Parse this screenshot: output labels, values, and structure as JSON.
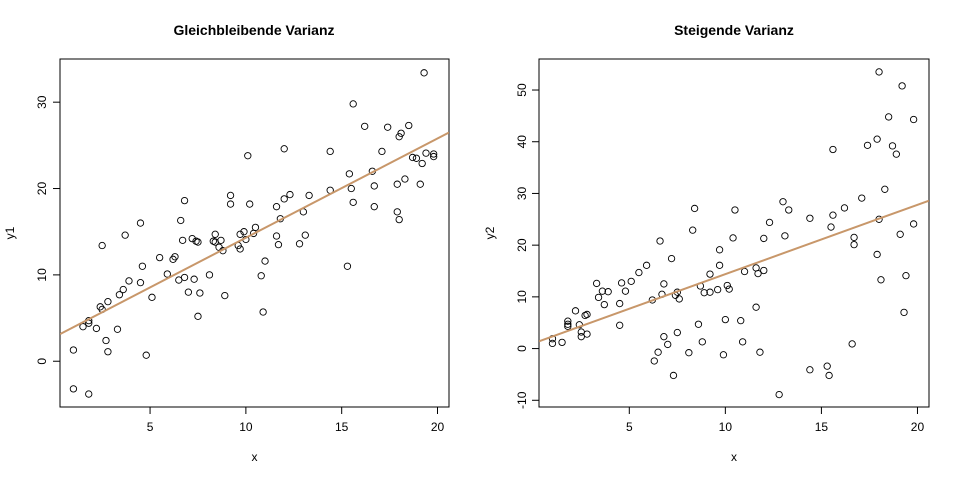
{
  "chart_data": [
    {
      "type": "scatter",
      "title": "Gleichbleibende Varianz",
      "xlabel": "x",
      "ylabel": "y1",
      "xlim": [
        0.3,
        20.6
      ],
      "ylim": [
        -5.3,
        35.0
      ],
      "xticks": [
        5,
        10,
        15,
        20
      ],
      "yticks": [
        0,
        10,
        20,
        30
      ],
      "regression_line": {
        "intercept": 2.8,
        "slope": 1.15,
        "color": "#C8976A"
      },
      "points": [
        [
          1,
          1.3
        ],
        [
          1,
          -3.2
        ],
        [
          1.5,
          4
        ],
        [
          1.8,
          4.7
        ],
        [
          1.8,
          4.4
        ],
        [
          1.8,
          -3.8
        ],
        [
          2.2,
          3.8
        ],
        [
          2.4,
          6.3
        ],
        [
          2.5,
          13.4
        ],
        [
          2.5,
          6
        ],
        [
          2.7,
          2.4
        ],
        [
          2.8,
          6.9
        ],
        [
          2.8,
          1.1
        ],
        [
          3.3,
          3.7
        ],
        [
          3.4,
          7.7
        ],
        [
          3.6,
          8.3
        ],
        [
          3.7,
          14.6
        ],
        [
          3.9,
          9.3
        ],
        [
          4.5,
          9.1
        ],
        [
          4.5,
          16
        ],
        [
          4.6,
          11
        ],
        [
          4.8,
          0.7
        ],
        [
          5.1,
          7.4
        ],
        [
          5.5,
          12
        ],
        [
          5.9,
          10.1
        ],
        [
          6.2,
          11.8
        ],
        [
          6.3,
          12.1
        ],
        [
          6.5,
          9.4
        ],
        [
          6.6,
          16.3
        ],
        [
          6.7,
          14
        ],
        [
          6.8,
          18.6
        ],
        [
          6.8,
          9.7
        ],
        [
          7,
          8
        ],
        [
          7.2,
          14.2
        ],
        [
          7.3,
          9.5
        ],
        [
          7.4,
          13.9
        ],
        [
          7.5,
          5.2
        ],
        [
          7.5,
          13.8
        ],
        [
          7.6,
          7.9
        ],
        [
          8.1,
          10
        ],
        [
          8.3,
          13.9
        ],
        [
          8.4,
          14.7
        ],
        [
          8.4,
          13.8
        ],
        [
          8.6,
          13.2
        ],
        [
          8.7,
          14
        ],
        [
          8.8,
          12.8
        ],
        [
          8.9,
          7.6
        ],
        [
          9.2,
          18.2
        ],
        [
          9.2,
          19.2
        ],
        [
          9.6,
          13.4
        ],
        [
          9.7,
          13
        ],
        [
          9.7,
          14.7
        ],
        [
          9.9,
          15
        ],
        [
          10,
          14.1
        ],
        [
          10.1,
          23.8
        ],
        [
          10.2,
          18.2
        ],
        [
          10.4,
          14.8
        ],
        [
          10.5,
          15.5
        ],
        [
          10.8,
          9.9
        ],
        [
          10.9,
          5.7
        ],
        [
          11,
          11.6
        ],
        [
          11.6,
          14.5
        ],
        [
          11.6,
          17.9
        ],
        [
          11.7,
          13.5
        ],
        [
          11.8,
          16.5
        ],
        [
          12,
          18.8
        ],
        [
          12,
          24.6
        ],
        [
          12.3,
          19.3
        ],
        [
          12.8,
          13.6
        ],
        [
          13,
          17.3
        ],
        [
          13.1,
          14.6
        ],
        [
          13.3,
          19.2
        ],
        [
          14.4,
          19.8
        ],
        [
          14.4,
          24.3
        ],
        [
          15.3,
          11
        ],
        [
          15.4,
          21.7
        ],
        [
          15.5,
          20
        ],
        [
          15.6,
          18.4
        ],
        [
          15.6,
          29.8
        ],
        [
          16.2,
          27.2
        ],
        [
          16.6,
          22
        ],
        [
          16.7,
          20.3
        ],
        [
          16.7,
          17.9
        ],
        [
          17.1,
          24.3
        ],
        [
          17.4,
          27.1
        ],
        [
          17.9,
          17.3
        ],
        [
          17.9,
          20.5
        ],
        [
          18,
          26
        ],
        [
          18,
          16.4
        ],
        [
          18.1,
          26.4
        ],
        [
          18.3,
          21.1
        ],
        [
          18.5,
          27.3
        ],
        [
          18.7,
          23.6
        ],
        [
          18.9,
          23.5
        ],
        [
          19.1,
          20.5
        ],
        [
          19.2,
          22.9
        ],
        [
          19.3,
          33.4
        ],
        [
          19.4,
          24.1
        ],
        [
          19.8,
          24
        ],
        [
          19.8,
          23.7
        ]
      ]
    },
    {
      "type": "scatter",
      "title": "Steigende Varianz",
      "xlabel": "x",
      "ylabel": "y2",
      "xlim": [
        0.3,
        20.6
      ],
      "ylim": [
        -11.3,
        56.0
      ],
      "xticks": [
        5,
        10,
        15,
        20
      ],
      "yticks": [
        -10,
        0,
        10,
        20,
        30,
        40,
        50
      ],
      "regression_line": {
        "intercept": 1.0,
        "slope": 1.34,
        "color": "#C8976A"
      },
      "points": [
        [
          1,
          1.9
        ],
        [
          1,
          1
        ],
        [
          1.5,
          1.2
        ],
        [
          1.8,
          5.3
        ],
        [
          1.8,
          4.7
        ],
        [
          1.8,
          4.3
        ],
        [
          2.2,
          7.3
        ],
        [
          2.4,
          4.6
        ],
        [
          2.5,
          3.2
        ],
        [
          2.5,
          2.3
        ],
        [
          2.7,
          6.4
        ],
        [
          2.8,
          6.6
        ],
        [
          2.8,
          2.8
        ],
        [
          3.3,
          12.6
        ],
        [
          3.4,
          9.9
        ],
        [
          3.6,
          11.1
        ],
        [
          3.7,
          8.5
        ],
        [
          3.9,
          11
        ],
        [
          4.5,
          8.7
        ],
        [
          4.5,
          4.5
        ],
        [
          4.6,
          12.7
        ],
        [
          4.8,
          11.1
        ],
        [
          5.1,
          13
        ],
        [
          5.5,
          14.7
        ],
        [
          5.9,
          16.1
        ],
        [
          6.2,
          9.4
        ],
        [
          6.3,
          -2.4
        ],
        [
          6.5,
          -0.7
        ],
        [
          6.6,
          20.8
        ],
        [
          6.7,
          10.5
        ],
        [
          6.8,
          12.5
        ],
        [
          6.8,
          2.3
        ],
        [
          7,
          0.8
        ],
        [
          7.2,
          17.4
        ],
        [
          7.3,
          -5.2
        ],
        [
          7.4,
          10.3
        ],
        [
          7.5,
          3.1
        ],
        [
          7.5,
          10.9
        ],
        [
          7.6,
          9.6
        ],
        [
          8.1,
          -0.8
        ],
        [
          8.3,
          22.9
        ],
        [
          8.4,
          27.1
        ],
        [
          8.6,
          4.7
        ],
        [
          8.7,
          12.1
        ],
        [
          8.8,
          1.3
        ],
        [
          8.9,
          10.8
        ],
        [
          9.2,
          14.4
        ],
        [
          9.2,
          10.9
        ],
        [
          9.6,
          11.4
        ],
        [
          9.7,
          19.1
        ],
        [
          9.7,
          16.1
        ],
        [
          9.9,
          -1.2
        ],
        [
          10,
          5.6
        ],
        [
          10.1,
          12.2
        ],
        [
          10.2,
          11.5
        ],
        [
          10.4,
          21.4
        ],
        [
          10.5,
          26.8
        ],
        [
          10.8,
          5.4
        ],
        [
          10.9,
          1.3
        ],
        [
          11,
          14.9
        ],
        [
          11.6,
          15.6
        ],
        [
          11.6,
          8
        ],
        [
          11.7,
          14.5
        ],
        [
          11.8,
          -0.7
        ],
        [
          12,
          21.3
        ],
        [
          12,
          15.1
        ],
        [
          12.3,
          24.4
        ],
        [
          12.8,
          -8.9
        ],
        [
          13,
          28.4
        ],
        [
          13.1,
          21.8
        ],
        [
          13.3,
          26.8
        ],
        [
          14.4,
          -4.1
        ],
        [
          14.4,
          25.2
        ],
        [
          15.3,
          -3.4
        ],
        [
          15.4,
          -5.2
        ],
        [
          15.5,
          23.5
        ],
        [
          15.6,
          38.5
        ],
        [
          15.6,
          25.8
        ],
        [
          16.2,
          27.2
        ],
        [
          16.6,
          0.9
        ],
        [
          16.7,
          21.5
        ],
        [
          16.7,
          20.1
        ],
        [
          17.1,
          29.1
        ],
        [
          17.4,
          39.3
        ],
        [
          17.9,
          40.5
        ],
        [
          17.9,
          18.2
        ],
        [
          18,
          53.5
        ],
        [
          18,
          25
        ],
        [
          18.1,
          13.3
        ],
        [
          18.3,
          30.8
        ],
        [
          18.5,
          44.8
        ],
        [
          18.7,
          39.2
        ],
        [
          18.9,
          37.6
        ],
        [
          19.1,
          22.1
        ],
        [
          19.2,
          50.8
        ],
        [
          19.3,
          7
        ],
        [
          19.4,
          14.1
        ],
        [
          19.8,
          44.3
        ],
        [
          19.8,
          24.1
        ]
      ]
    }
  ]
}
